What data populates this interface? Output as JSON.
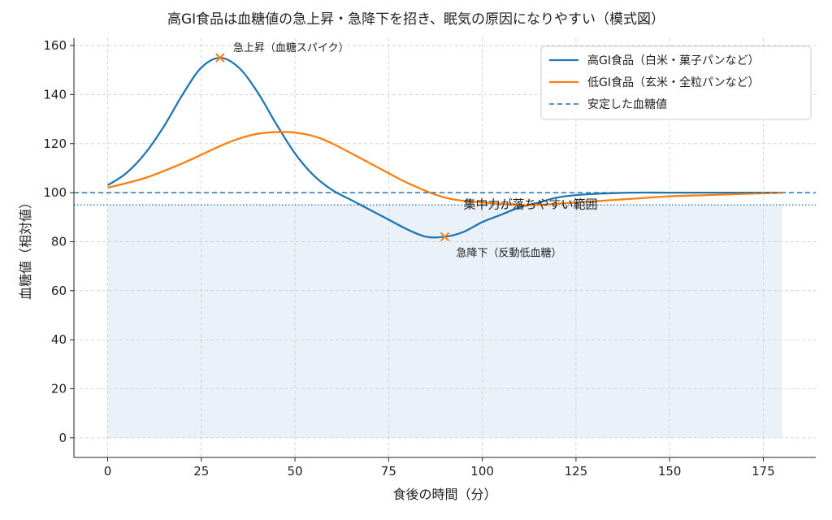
{
  "chart_data": {
    "type": "line",
    "title": "高GI食品は血糖値の急上昇・急降下を招き、眠気の原因になりやすい（模式図）",
    "xlabel": "食後の時間（分）",
    "ylabel": "血糖値（相対値）",
    "xlim": [
      -9,
      189
    ],
    "ylim": [
      -8,
      163
    ],
    "xticks": [
      0,
      25,
      50,
      75,
      100,
      125,
      150,
      175
    ],
    "yticks": [
      0,
      20,
      40,
      60,
      80,
      100,
      120,
      140,
      160
    ],
    "grid": true,
    "legend_position": "top-right",
    "series": [
      {
        "name": "高GI食品（白米・菓子パンなど）",
        "color": "#1f77b4",
        "style": "solid",
        "x": [
          0,
          5,
          10,
          15,
          20,
          25,
          30,
          35,
          40,
          45,
          50,
          55,
          60,
          65,
          70,
          75,
          80,
          85,
          90,
          95,
          100,
          105,
          110,
          115,
          120,
          125,
          130,
          140,
          150,
          160,
          170,
          180
        ],
        "y": [
          103,
          108,
          116,
          127,
          140,
          151,
          155,
          151,
          141,
          128,
          116,
          107,
          101,
          97,
          93,
          89,
          85,
          82,
          82,
          84,
          88,
          91,
          94,
          96,
          98,
          99,
          99.5,
          100,
          100,
          100,
          100,
          100
        ]
      },
      {
        "name": "低GI食品（玄米・全粒パンなど）",
        "color": "#ff7f0e",
        "style": "solid",
        "x": [
          0,
          10,
          20,
          30,
          35,
          40,
          45,
          50,
          55,
          60,
          70,
          80,
          90,
          100,
          110,
          115,
          120,
          130,
          140,
          150,
          160,
          170,
          180
        ],
        "y": [
          102,
          106,
          112,
          119,
          122,
          124,
          124.7,
          124.5,
          123,
          120,
          112,
          104,
          98,
          96,
          95,
          95,
          95.5,
          96.5,
          97.5,
          98.5,
          99,
          99.5,
          100
        ]
      },
      {
        "name": "安定した血糖値",
        "color": "#1f77b4",
        "style": "dashed",
        "y": 100
      }
    ],
    "threshold_line": {
      "y": 95,
      "color": "#1f77b4",
      "style": "dotted"
    },
    "shaded_region": {
      "x": [
        0,
        180
      ],
      "y": [
        0,
        95
      ],
      "color": "#dce8f5"
    },
    "annotations": [
      {
        "text": "急上昇（血糖スパイク）",
        "x": 30,
        "y": 155,
        "marker": "x",
        "marker_color": "#ff7f0e"
      },
      {
        "text": "急降下（反動低血糖）",
        "x": 90,
        "y": 82,
        "marker": "x",
        "marker_color": "#ff7f0e"
      },
      {
        "text": "集中力が落ちやすい範囲",
        "x": 95,
        "y": 89
      }
    ]
  }
}
